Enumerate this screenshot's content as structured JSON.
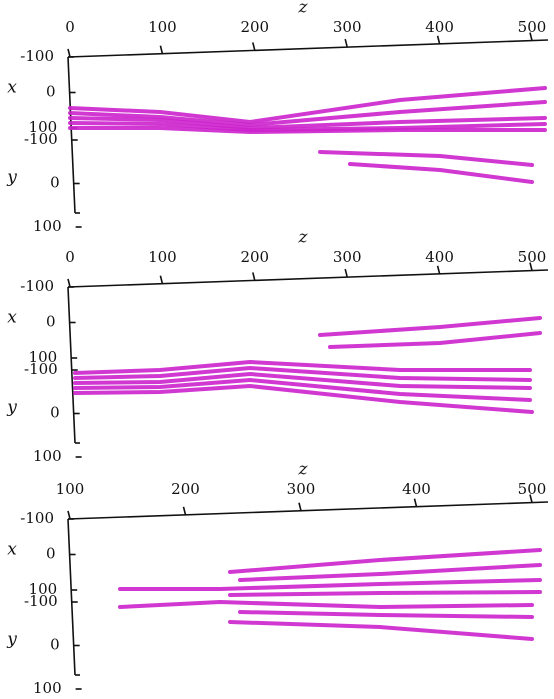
{
  "chart_data": [
    {
      "type": "surface3d",
      "color": "#cc22cc",
      "zlabel": "z",
      "xlabel": "x",
      "ylabel": "y",
      "zlim": [
        0,
        500
      ],
      "zticks": [
        0,
        100,
        200,
        300,
        400,
        500
      ],
      "xlim": [
        -100,
        100
      ],
      "xticks": [
        -100,
        0,
        100
      ],
      "ylim": [
        -100,
        100
      ],
      "yticks": [
        -100,
        0,
        100
      ]
    },
    {
      "type": "surface3d",
      "color": "#cc22cc",
      "zlabel": "z",
      "xlabel": "x",
      "ylabel": "y",
      "zlim": [
        0,
        500
      ],
      "zticks": [
        0,
        100,
        200,
        300,
        400,
        500
      ],
      "xlim": [
        -100,
        100
      ],
      "xticks": [
        -100,
        0,
        100
      ],
      "ylim": [
        -100,
        100
      ],
      "yticks": [
        -100,
        0,
        100
      ]
    },
    {
      "type": "surface3d",
      "color": "#cc22cc",
      "zlabel": "z",
      "xlabel": "x",
      "ylabel": "y",
      "zlim": [
        100,
        500
      ],
      "zticks": [
        100,
        200,
        300,
        400,
        500
      ],
      "xlim": [
        -100,
        100
      ],
      "xticks": [
        -100,
        0,
        100
      ],
      "ylim": [
        -100,
        100
      ],
      "yticks": [
        -100,
        0,
        100
      ]
    }
  ]
}
